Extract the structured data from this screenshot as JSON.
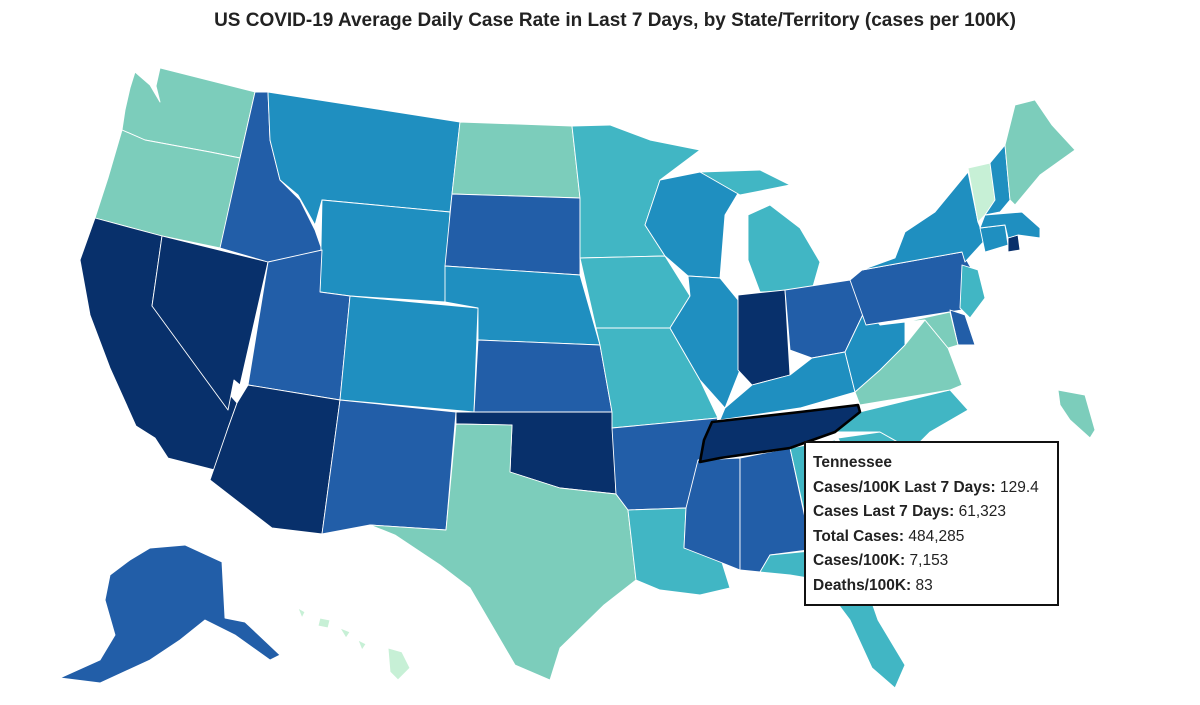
{
  "title": "US COVID-19 Average Daily Case Rate in Last 7 Days, by State/Territory (cases per 100K)",
  "colors": {
    "lightest": "#c7f0d6",
    "light": "#7ccdbb",
    "mid": "#41b6c4",
    "midblue": "#1f8fc0",
    "blue": "#225ea8",
    "dark": "#0a3569",
    "darkest": "#08306b",
    "stroke": "#ffffff",
    "highlight_stroke": "#000000"
  },
  "states": [
    {
      "name": "Washington",
      "class": "light"
    },
    {
      "name": "Oregon",
      "class": "light"
    },
    {
      "name": "California",
      "class": "darkest"
    },
    {
      "name": "Nevada",
      "class": "darkest"
    },
    {
      "name": "Idaho",
      "class": "blue"
    },
    {
      "name": "Montana",
      "class": "midblue"
    },
    {
      "name": "Wyoming",
      "class": "midblue"
    },
    {
      "name": "Utah",
      "class": "blue"
    },
    {
      "name": "Arizona",
      "class": "darkest"
    },
    {
      "name": "Colorado",
      "class": "midblue"
    },
    {
      "name": "New Mexico",
      "class": "blue"
    },
    {
      "name": "North Dakota",
      "class": "light"
    },
    {
      "name": "South Dakota",
      "class": "blue"
    },
    {
      "name": "Nebraska",
      "class": "midblue"
    },
    {
      "name": "Kansas",
      "class": "blue"
    },
    {
      "name": "Oklahoma",
      "class": "darkest"
    },
    {
      "name": "Texas",
      "class": "light"
    },
    {
      "name": "Minnesota",
      "class": "mid"
    },
    {
      "name": "Iowa",
      "class": "mid"
    },
    {
      "name": "Missouri",
      "class": "mid"
    },
    {
      "name": "Arkansas",
      "class": "blue"
    },
    {
      "name": "Louisiana",
      "class": "mid"
    },
    {
      "name": "Wisconsin",
      "class": "midblue"
    },
    {
      "name": "Illinois",
      "class": "midblue"
    },
    {
      "name": "Michigan",
      "class": "mid"
    },
    {
      "name": "Indiana",
      "class": "darkest"
    },
    {
      "name": "Ohio",
      "class": "blue"
    },
    {
      "name": "Kentucky",
      "class": "midblue"
    },
    {
      "name": "Tennessee",
      "class": "darkest"
    },
    {
      "name": "Mississippi",
      "class": "blue"
    },
    {
      "name": "Alabama",
      "class": "blue"
    },
    {
      "name": "Georgia",
      "class": "mid"
    },
    {
      "name": "Florida",
      "class": "mid"
    },
    {
      "name": "South Carolina",
      "class": "mid"
    },
    {
      "name": "North Carolina",
      "class": "mid"
    },
    {
      "name": "Virginia",
      "class": "light"
    },
    {
      "name": "West Virginia",
      "class": "midblue"
    },
    {
      "name": "Pennsylvania",
      "class": "blue"
    },
    {
      "name": "New York",
      "class": "midblue"
    },
    {
      "name": "New Jersey",
      "class": "mid"
    },
    {
      "name": "Delaware",
      "class": "blue"
    },
    {
      "name": "Maryland",
      "class": "light"
    },
    {
      "name": "Connecticut",
      "class": "midblue"
    },
    {
      "name": "Rhode Island",
      "class": "darkest"
    },
    {
      "name": "Massachusetts",
      "class": "midblue"
    },
    {
      "name": "Vermont",
      "class": "lightest"
    },
    {
      "name": "New Hampshire",
      "class": "midblue"
    },
    {
      "name": "Maine",
      "class": "light"
    },
    {
      "name": "Alaska",
      "class": "blue"
    },
    {
      "name": "Hawaii",
      "class": "lightest"
    },
    {
      "name": "Puerto Rico",
      "class": "light"
    }
  ],
  "tooltip": {
    "state": "Tennessee",
    "rows": [
      {
        "label": "Cases/100K Last 7 Days:",
        "value": "129.4"
      },
      {
        "label": "Cases Last 7 Days:",
        "value": "61,323"
      },
      {
        "label": "Total Cases:",
        "value": "484,285"
      },
      {
        "label": "Cases/100K:",
        "value": "7,153"
      },
      {
        "label": "Deaths/100K:",
        "value": "83"
      }
    ]
  }
}
